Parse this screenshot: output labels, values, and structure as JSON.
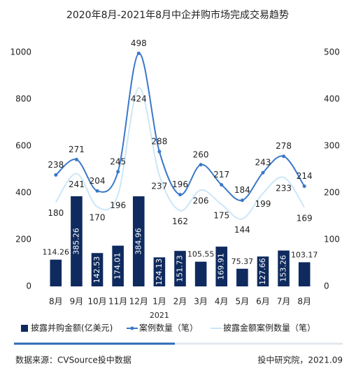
{
  "chart_data": {
    "type": "combo",
    "title": "2020年8月-2021年8月中企并购市场完成交易趋势",
    "categories": [
      "8月",
      "9月",
      "10月",
      "11月",
      "12月",
      "1月",
      "2月",
      "3月",
      "4月",
      "5月",
      "6月",
      "7月",
      "8月"
    ],
    "year_label": "2021",
    "series": [
      {
        "name": "披露并购金额(亿美元)",
        "type": "bar",
        "color": "#0f2a5e",
        "values": [
          114.26,
          385.26,
          142.53,
          174.01,
          384.96,
          124.13,
          151.73,
          105.55,
          169.91,
          75.37,
          127.66,
          153.26,
          103.17
        ]
      },
      {
        "name": "案例数量（笔）",
        "type": "line",
        "axis": "y2",
        "color": "#3a78c9",
        "markers": true,
        "values": [
          238,
          271,
          204,
          245,
          498,
          288,
          196,
          260,
          217,
          184,
          243,
          278,
          214
        ]
      },
      {
        "name": "披露金额案例数量（笔）",
        "type": "line",
        "axis": "y2",
        "color": "#cde6f7",
        "markers": false,
        "values": [
          180,
          241,
          170,
          196,
          424,
          237,
          162,
          206,
          175,
          144,
          199,
          233,
          169
        ]
      }
    ],
    "ylim": [
      0,
      1000
    ],
    "yticks": [
      0,
      200,
      400,
      600,
      800,
      1000
    ],
    "y2lim": [
      0,
      500
    ],
    "y2ticks": [
      0,
      100,
      200,
      300,
      400,
      500
    ],
    "source": "数据来源：CVSource投中数据",
    "credit": "投中研究院，2021.09"
  }
}
